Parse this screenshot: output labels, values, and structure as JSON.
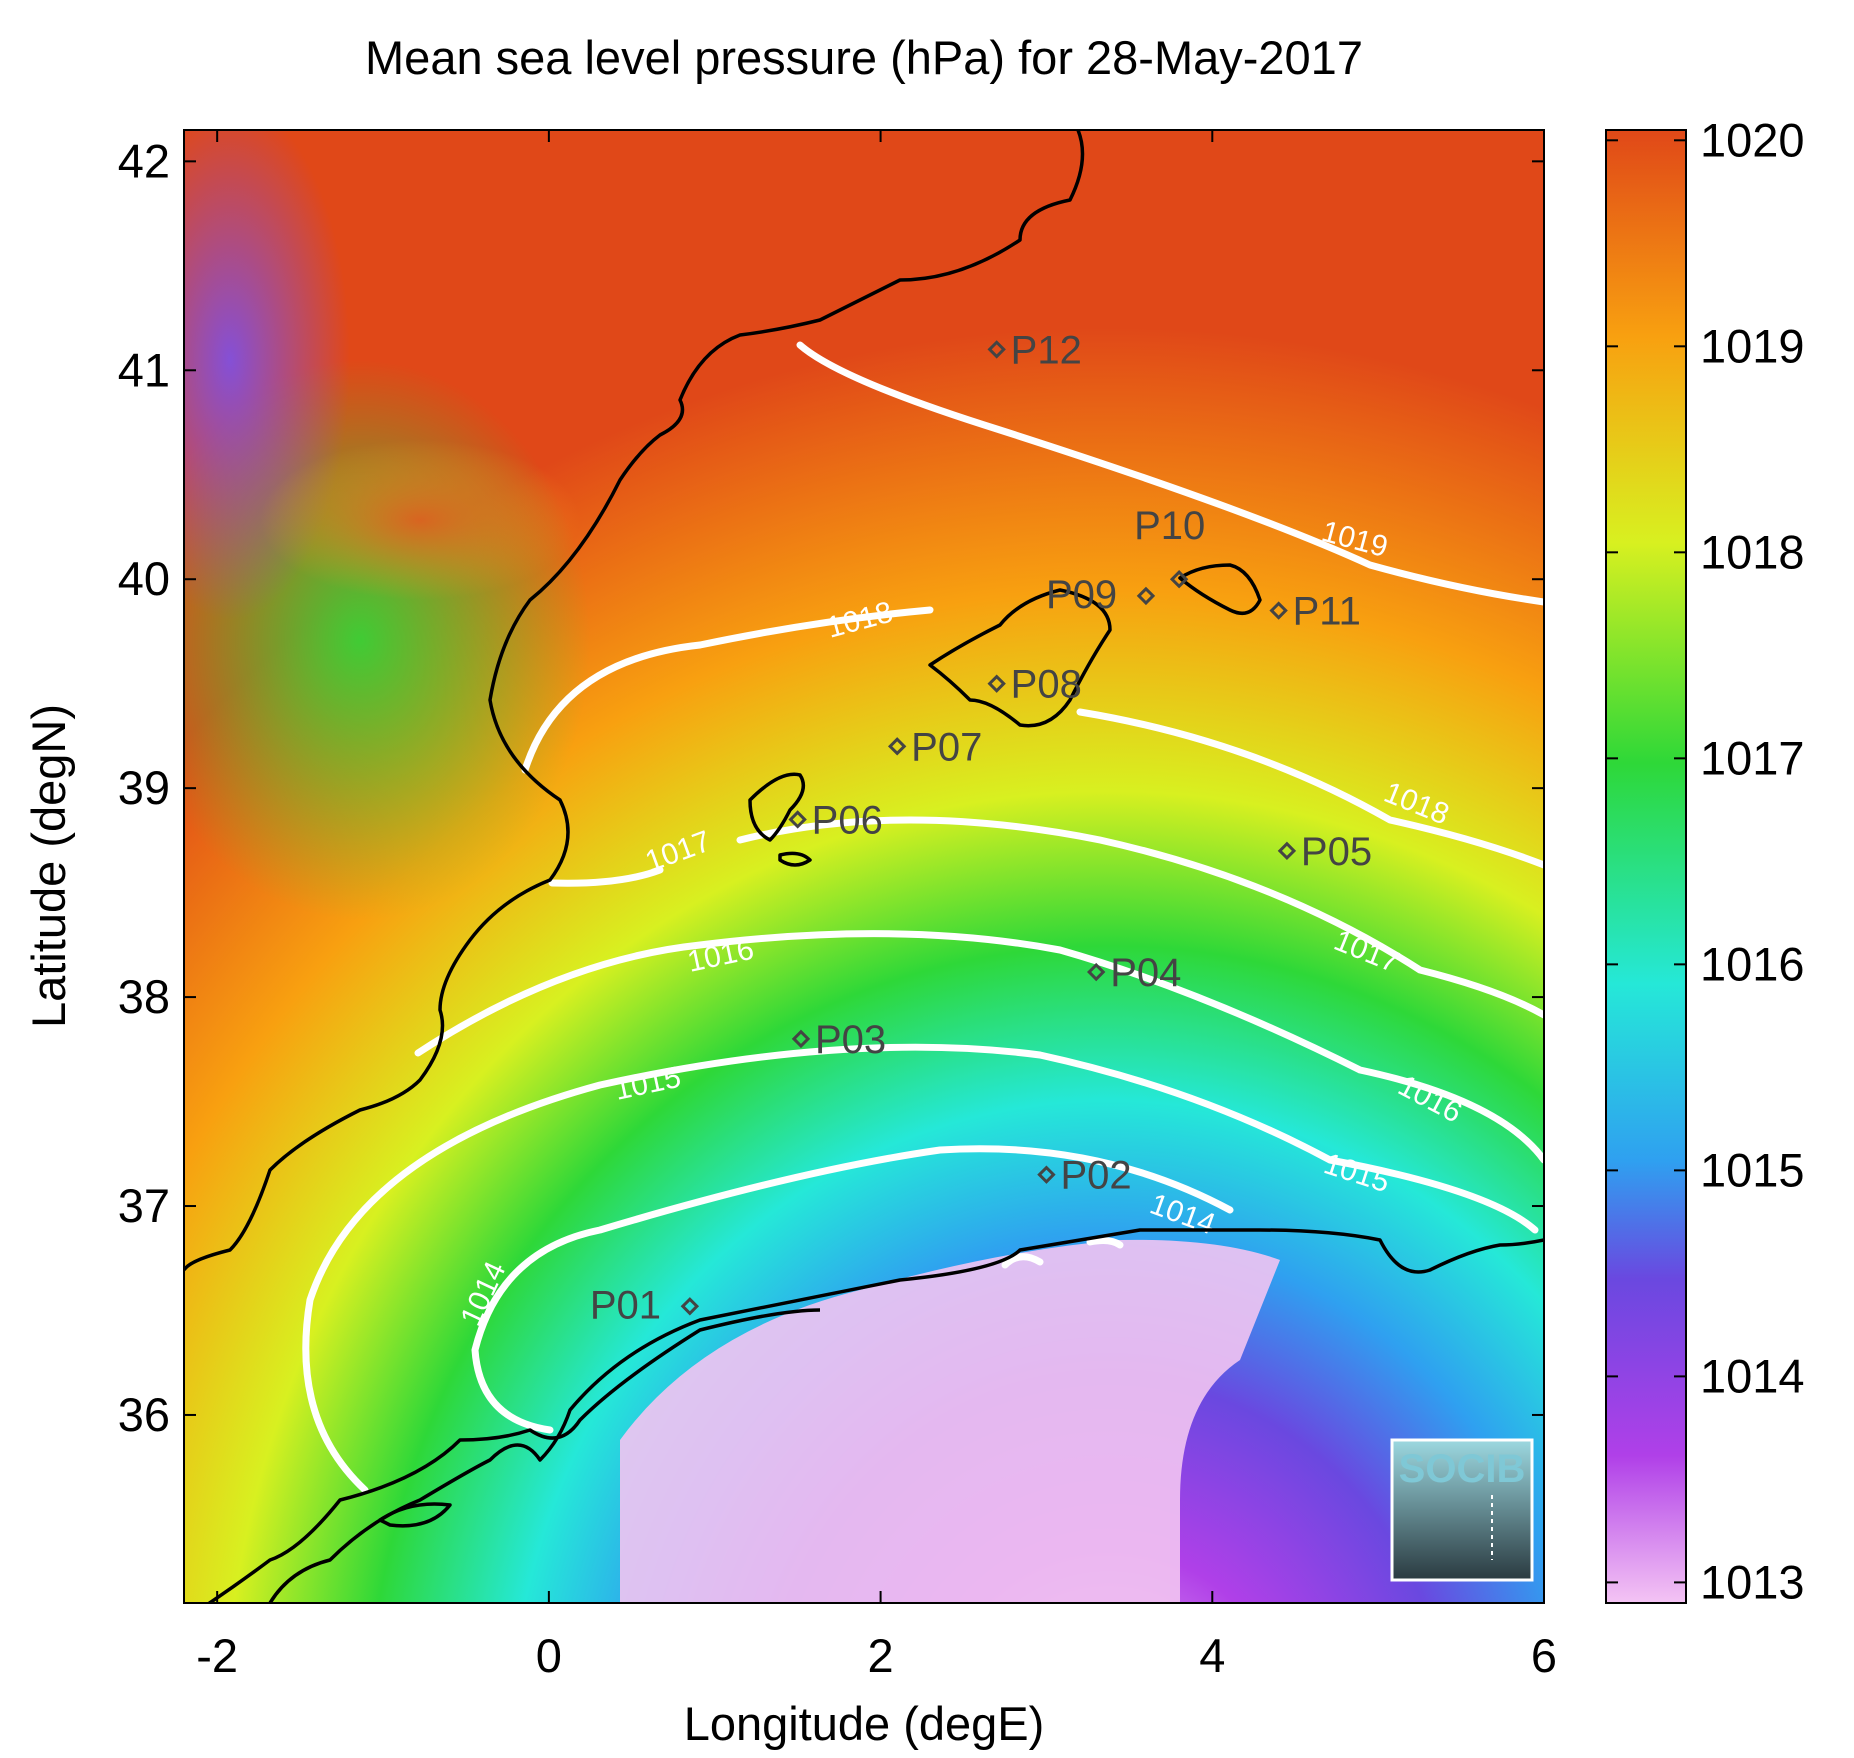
{
  "title": "Mean sea level pressure (hPa) for 28-May-2017",
  "xlabel": "Longitude (degE)",
  "ylabel": "Latitude (degN)",
  "xticks": [
    "-2",
    "0",
    "2",
    "4",
    "6"
  ],
  "yticks": [
    "36",
    "37",
    "38",
    "39",
    "40",
    "41",
    "42"
  ],
  "colorbar_ticks": [
    "1013",
    "1014",
    "1015",
    "1016",
    "1017",
    "1018",
    "1019",
    "1020"
  ],
  "colorbar_colors": [
    "#f4c4f4",
    "#a83ce8",
    "#6a48e0",
    "#2fa0f0",
    "#25e8d8",
    "#2ed838",
    "#d8f020",
    "#f8a010",
    "#e04818"
  ],
  "contour_labels": [
    "1014",
    "1014",
    "1015",
    "1015",
    "1016",
    "1016",
    "1017",
    "1017",
    "1018",
    "1018",
    "1019"
  ],
  "stations": [
    {
      "id": "P01",
      "label": "P01",
      "lon": 0.85,
      "lat": 36.52
    },
    {
      "id": "P02",
      "label": "P02",
      "lon": 3.0,
      "lat": 37.15
    },
    {
      "id": "P03",
      "label": "P03",
      "lon": 1.52,
      "lat": 37.8
    },
    {
      "id": "P04",
      "label": "P04",
      "lon": 3.3,
      "lat": 38.12
    },
    {
      "id": "P05",
      "label": "P05",
      "lon": 4.45,
      "lat": 38.7
    },
    {
      "id": "P06",
      "label": "P06",
      "lon": 1.5,
      "lat": 38.85
    },
    {
      "id": "P07",
      "label": "P07",
      "lon": 2.1,
      "lat": 39.2
    },
    {
      "id": "P08",
      "label": "P08",
      "lon": 2.7,
      "lat": 39.5
    },
    {
      "id": "P09",
      "label": "P09",
      "lon": 3.6,
      "lat": 39.92
    },
    {
      "id": "P10",
      "label": "P10",
      "lon": 3.8,
      "lat": 40.0
    },
    {
      "id": "P11",
      "label": "P11",
      "lon": 4.4,
      "lat": 39.85
    },
    {
      "id": "P12",
      "label": "P12",
      "lon": 2.7,
      "lat": 41.1
    }
  ],
  "logo": "SOCIB"
}
